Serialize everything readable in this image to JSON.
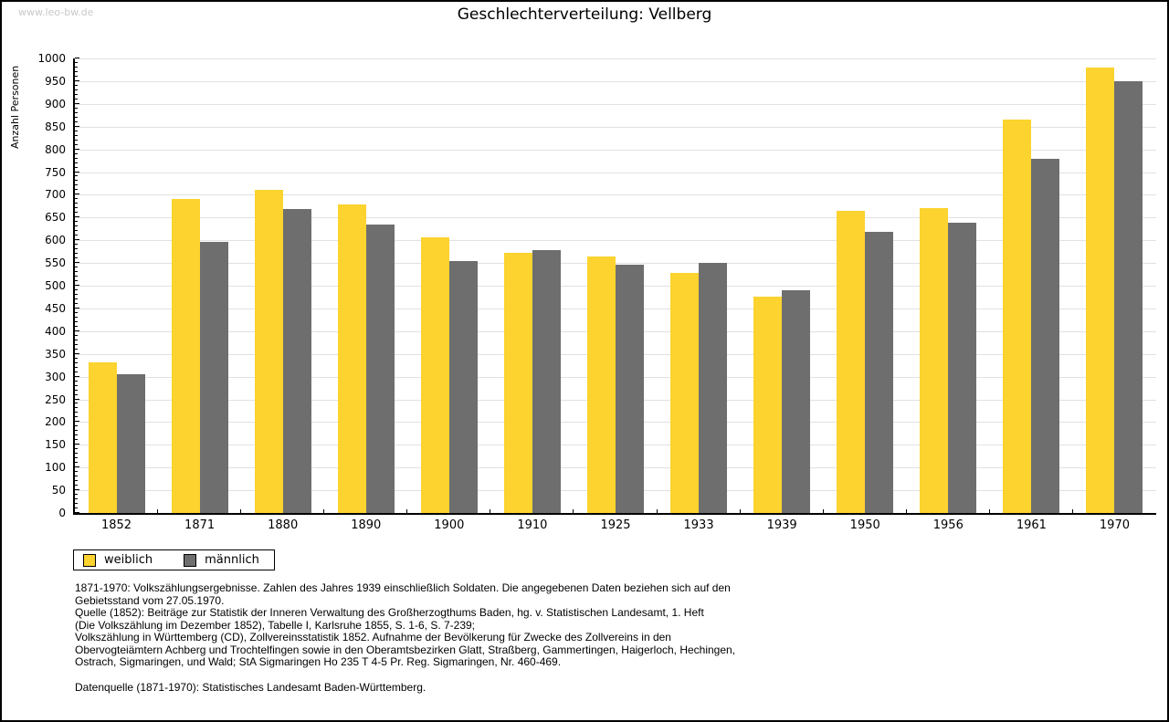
{
  "page": {
    "watermark": "www.leo-bw.de",
    "title": "Geschlechterverteilung: Vellberg"
  },
  "chart_data": {
    "type": "bar",
    "title": "Geschlechterverteilung: Vellberg",
    "xlabel": "",
    "ylabel": "Anzahl Personen",
    "ylim": [
      0,
      1000
    ],
    "ytick_major": 50,
    "ytick_minor": 10,
    "grid": true,
    "legend_position": "bottom-left",
    "categories": [
      "1852",
      "1871",
      "1880",
      "1890",
      "1900",
      "1910",
      "1925",
      "1933",
      "1939",
      "1950",
      "1956",
      "1961",
      "1970"
    ],
    "series": [
      {
        "name": "weiblich",
        "key": "weiblich",
        "color": "#fcd32f",
        "values": [
          331,
          690,
          711,
          679,
          607,
          573,
          565,
          529,
          475,
          665,
          670,
          866,
          980
        ]
      },
      {
        "name": "männlich",
        "key": "maennlich",
        "color": "#6e6e6e",
        "values": [
          305,
          597,
          668,
          635,
          555,
          578,
          547,
          550,
          490,
          618,
          639,
          780,
          950
        ]
      }
    ]
  },
  "footnotes": {
    "lines": [
      "1871-1970: Volkszählungsergebnisse. Zahlen des Jahres 1939 einschließlich Soldaten. Die angegebenen Daten beziehen sich auf den",
      "Gebietsstand vom 27.05.1970.",
      "Quelle (1852): Beiträge zur Statistik der Inneren Verwaltung des Großherzogthums Baden, hg. v. Statistischen Landesamt, 1. Heft",
      "(Die Volkszählung im Dezember 1852), Tabelle I, Karlsruhe 1855, S. 1-6, S. 7-239;",
      "Volkszählung in Württemberg (CD), Zollvereinsstatistik 1852. Aufnahme der Bevölkerung für Zwecke des Zollvereins in den",
      "Obervogteiämtern Achberg und Trochtelfingen sowie in den Oberamtsbezirken Glatt, Straßberg, Gammertingen, Haigerloch, Hechingen,",
      "Ostrach, Sigmaringen, und Wald; StA Sigmaringen Ho 235 T 4-5 Pr. Reg. Sigmaringen, Nr. 460-469."
    ],
    "datasource": "Datenquelle (1871-1970): Statistisches Landesamt Baden-Württemberg."
  },
  "colors": {
    "weiblich": "#fcd32f",
    "maennlich": "#6e6e6e",
    "gridline": "#e1e1e1",
    "axis": "#000000",
    "watermark": "#c9c9c9"
  }
}
